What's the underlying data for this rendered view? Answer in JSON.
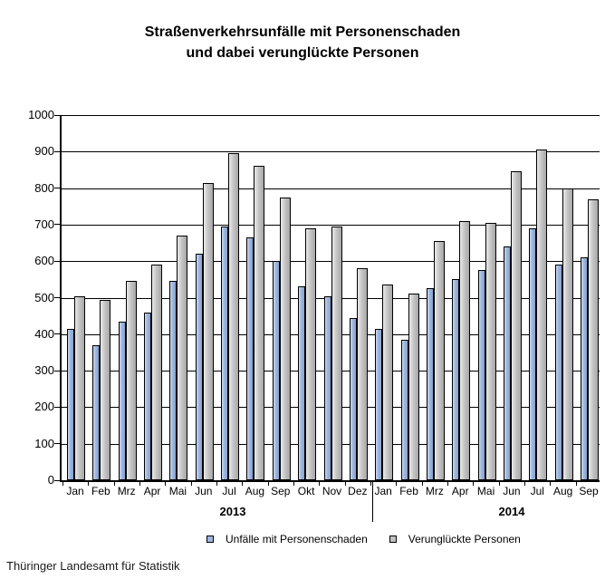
{
  "title": {
    "line1": "Straßenverkehrsunfälle mit Personenschaden",
    "line2": "und dabei verunglückte Personen"
  },
  "footer": "Thüringer Landesamt für Statistik",
  "chart_data": {
    "type": "bar",
    "title": "Straßenverkehrsunfälle mit Personenschaden und dabei verunglückte Personen",
    "categories": [
      "Jan",
      "Feb",
      "Mrz",
      "Apr",
      "Mai",
      "Jun",
      "Jul",
      "Aug",
      "Sep",
      "Okt",
      "Nov",
      "Dez",
      "Jan",
      "Feb",
      "Mrz",
      "Apr",
      "Mai",
      "Jun",
      "Jul",
      "Aug",
      "Sep"
    ],
    "year_groups": [
      {
        "label": "2013",
        "start": 0,
        "count": 12
      },
      {
        "label": "2014",
        "start": 12,
        "count": 9
      }
    ],
    "series": [
      {
        "name": "Unfälle mit Personenschaden",
        "color": "#9db6df",
        "values": [
          415,
          370,
          435,
          460,
          545,
          620,
          695,
          665,
          600,
          530,
          505,
          445,
          415,
          385,
          525,
          550,
          575,
          640,
          690,
          590,
          610
        ]
      },
      {
        "name": "Verunglückte Personen",
        "color": "#c0c0c0",
        "values": [
          505,
          495,
          545,
          590,
          670,
          815,
          895,
          860,
          775,
          690,
          695,
          580,
          535,
          510,
          655,
          710,
          705,
          845,
          905,
          800,
          770
        ]
      }
    ],
    "ylim": [
      0,
      1000
    ],
    "ytick_step": 100,
    "grid": true,
    "legend_position": "bottom",
    "xlabel": "",
    "ylabel": ""
  }
}
